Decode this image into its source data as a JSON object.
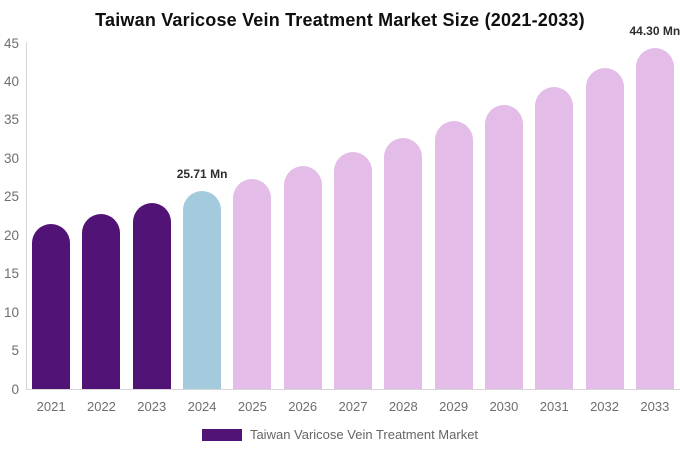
{
  "chart_data": {
    "type": "bar",
    "title": "Taiwan Varicose Vein Treatment Market Size (2021-2033)",
    "xlabel": "",
    "ylabel": "",
    "unit": "Mn",
    "categories": [
      "2021",
      "2022",
      "2023",
      "2024",
      "2025",
      "2026",
      "2027",
      "2028",
      "2029",
      "2030",
      "2031",
      "2032",
      "2033"
    ],
    "values": [
      21.4,
      22.8,
      24.2,
      25.71,
      27.3,
      29.0,
      30.8,
      32.7,
      34.8,
      37.0,
      39.3,
      41.7,
      44.3
    ],
    "bar_colors": [
      "#521377",
      "#521377",
      "#521377",
      "#A3CBDD",
      "#E3BDE8",
      "#E3BDE8",
      "#E3BDE8",
      "#E3BDE8",
      "#E3BDE8",
      "#E3BDE8",
      "#E3BDE8",
      "#E3BDE8",
      "#E3BDE8"
    ],
    "color_roles": {
      "historical": "#521377",
      "highlight_current_year": "#A3CBDD",
      "forecast": "#E3BDE8"
    },
    "data_labels": [
      {
        "category": "2024",
        "text": "25.71 Mn"
      },
      {
        "category": "2033",
        "text": "44.30 Mn"
      }
    ],
    "ylim": [
      0,
      45
    ],
    "yticks": [
      0,
      5,
      10,
      15,
      20,
      25,
      30,
      35,
      40,
      45
    ],
    "grid": false,
    "legend": {
      "position": "bottom",
      "label": "Taiwan Varicose Vein Treatment Market",
      "color": "#521377"
    }
  }
}
